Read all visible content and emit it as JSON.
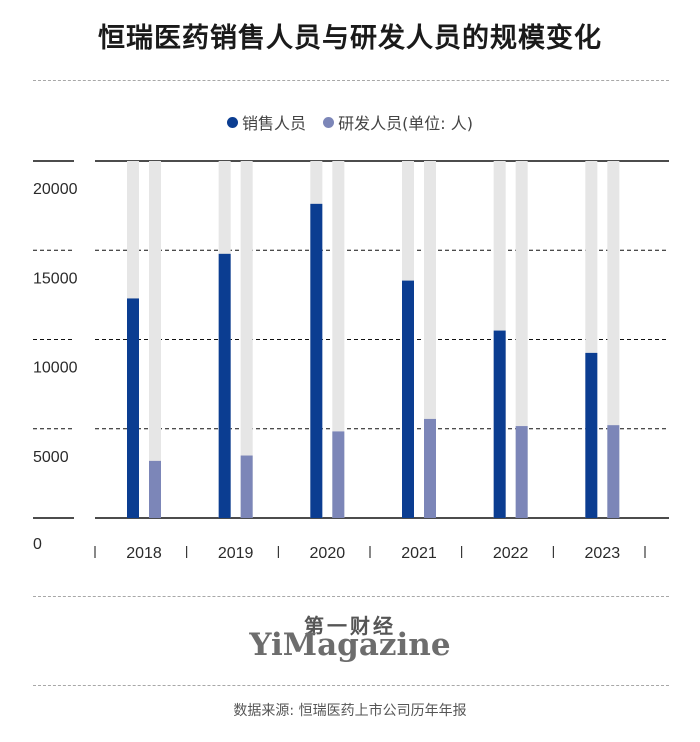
{
  "title": "恒瑞医药销售人员与研发人员的规模变化",
  "legend": {
    "series1": "销售人员",
    "series2": "研发人员(单位: 人)"
  },
  "brand": {
    "cn": "第一财经",
    "en": "YiMagazine"
  },
  "source": "数据来源: 恒瑞医药上市公司历年年报",
  "colors": {
    "sales": "#0b3d91",
    "rd": "#7c86b8",
    "track": "#e6e6e6",
    "axis": "#111111"
  },
  "chart_data": {
    "type": "bar",
    "title": "恒瑞医药销售人员与研发人员的规模变化",
    "categories": [
      "2018",
      "2019",
      "2020",
      "2021",
      "2022",
      "2023"
    ],
    "series": [
      {
        "name": "销售人员",
        "values": [
          12300,
          14800,
          17600,
          13300,
          10500,
          9250
        ]
      },
      {
        "name": "研发人员",
        "values": [
          3200,
          3500,
          4850,
          5550,
          5150,
          5200
        ]
      }
    ],
    "ylim": [
      0,
      20000
    ],
    "y_ticks": [
      "0",
      "5000",
      "10000",
      "15000",
      "20000"
    ],
    "unit": "人",
    "grid": true,
    "legend_position": "top"
  }
}
